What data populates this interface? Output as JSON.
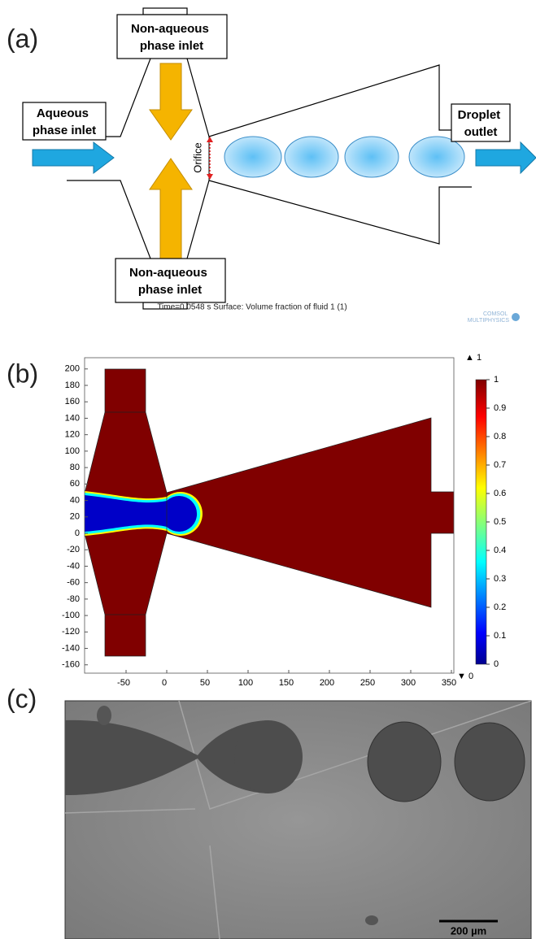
{
  "panel_a": {
    "label": "(a)",
    "top_inlet": [
      "Non-aqueous",
      "phase inlet"
    ],
    "bottom_inlet": [
      "Non-aqueous",
      "phase inlet"
    ],
    "aqueous_inlet": [
      "Aqueous",
      "phase inlet"
    ],
    "orifice": "Orifice",
    "outlet": [
      "Droplet",
      "outlet"
    ]
  },
  "panel_b": {
    "label": "(b)",
    "title": "Time=0.0548 s   Surface: Volume fraction of fluid 1 (1)",
    "logo": [
      "COMSOL",
      "MULTIPHYSICS"
    ],
    "xticks": [
      -50,
      0,
      50,
      100,
      150,
      200,
      250,
      300,
      350
    ],
    "yticks": [
      200,
      180,
      160,
      140,
      120,
      100,
      80,
      60,
      40,
      20,
      0,
      -20,
      -40,
      -60,
      -80,
      -100,
      -120,
      -140,
      -160
    ],
    "colorbar_ticks": [
      0,
      0.1,
      0.2,
      0.3,
      0.4,
      0.5,
      0.6,
      0.7,
      0.8,
      0.9,
      1
    ],
    "colorbar_max": "▲ 1",
    "colorbar_min": "▼ 0"
  },
  "panel_c": {
    "label": "(c)",
    "scale_bar": "200 µm"
  }
}
